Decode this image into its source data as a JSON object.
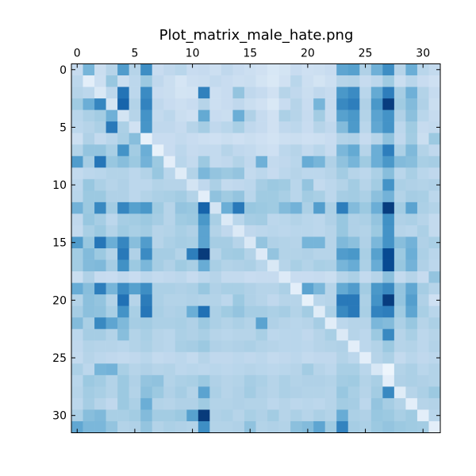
{
  "chart_data": {
    "type": "heatmap",
    "title": "Plot_matrix_male_hate.png",
    "xlabel": "",
    "ylabel": "",
    "rows": 32,
    "cols": 32,
    "x_ticks": [
      0,
      5,
      10,
      15,
      20,
      25,
      30
    ],
    "y_ticks": [
      0,
      5,
      10,
      15,
      20,
      25,
      30
    ],
    "x_axis_position": "top",
    "y_axis_direction": "down",
    "grid": false,
    "colormap": "Blues",
    "vlim": [
      0,
      1
    ],
    "colormap_stops": [
      "#f7fbff",
      "#deebf7",
      "#c6dbef",
      "#9ecae1",
      "#6baed6",
      "#4292c6",
      "#2171b5",
      "#08519c",
      "#08306b"
    ],
    "values": [
      [
        0.25,
        0.47,
        0.23,
        0.3,
        0.58,
        0.3,
        0.64,
        0.24,
        0.27,
        0.29,
        0.24,
        0.25,
        0.22,
        0.27,
        0.24,
        0.22,
        0.2,
        0.16,
        0.18,
        0.24,
        0.21,
        0.22,
        0.24,
        0.54,
        0.56,
        0.32,
        0.49,
        0.64,
        0.3,
        0.5,
        0.29,
        0.26
      ],
      [
        0.28,
        0.1,
        0.22,
        0.39,
        0.23,
        0.28,
        0.38,
        0.27,
        0.23,
        0.17,
        0.22,
        0.23,
        0.26,
        0.24,
        0.22,
        0.23,
        0.18,
        0.15,
        0.2,
        0.29,
        0.22,
        0.18,
        0.22,
        0.3,
        0.31,
        0.25,
        0.28,
        0.37,
        0.23,
        0.29,
        0.24,
        0.21
      ],
      [
        0.3,
        0.28,
        0.15,
        0.28,
        0.74,
        0.28,
        0.65,
        0.24,
        0.23,
        0.18,
        0.19,
        0.69,
        0.22,
        0.24,
        0.4,
        0.27,
        0.25,
        0.2,
        0.3,
        0.27,
        0.23,
        0.27,
        0.25,
        0.6,
        0.65,
        0.29,
        0.52,
        0.7,
        0.35,
        0.49,
        0.31,
        0.25
      ],
      [
        0.37,
        0.5,
        0.67,
        0.18,
        0.8,
        0.31,
        0.68,
        0.27,
        0.24,
        0.22,
        0.24,
        0.3,
        0.22,
        0.24,
        0.27,
        0.23,
        0.2,
        0.15,
        0.24,
        0.3,
        0.24,
        0.47,
        0.25,
        0.66,
        0.7,
        0.32,
        0.6,
        0.95,
        0.37,
        0.44,
        0.32,
        0.23
      ],
      [
        0.29,
        0.33,
        0.36,
        0.49,
        0.18,
        0.3,
        0.62,
        0.26,
        0.28,
        0.23,
        0.21,
        0.52,
        0.24,
        0.23,
        0.5,
        0.32,
        0.25,
        0.2,
        0.33,
        0.3,
        0.25,
        0.36,
        0.25,
        0.56,
        0.6,
        0.31,
        0.55,
        0.62,
        0.32,
        0.42,
        0.29,
        0.25
      ],
      [
        0.28,
        0.3,
        0.33,
        0.72,
        0.33,
        0.2,
        0.61,
        0.27,
        0.27,
        0.25,
        0.3,
        0.35,
        0.27,
        0.29,
        0.34,
        0.27,
        0.25,
        0.2,
        0.27,
        0.28,
        0.24,
        0.3,
        0.27,
        0.44,
        0.59,
        0.29,
        0.53,
        0.62,
        0.28,
        0.37,
        0.25,
        0.26
      ],
      [
        0.22,
        0.32,
        0.26,
        0.29,
        0.34,
        0.43,
        0.08,
        0.24,
        0.24,
        0.26,
        0.24,
        0.22,
        0.21,
        0.23,
        0.21,
        0.23,
        0.21,
        0.19,
        0.22,
        0.23,
        0.21,
        0.22,
        0.24,
        0.31,
        0.32,
        0.25,
        0.3,
        0.41,
        0.27,
        0.36,
        0.23,
        0.38
      ],
      [
        0.31,
        0.4,
        0.4,
        0.34,
        0.62,
        0.36,
        0.5,
        0.08,
        0.24,
        0.28,
        0.25,
        0.26,
        0.26,
        0.3,
        0.27,
        0.26,
        0.23,
        0.21,
        0.28,
        0.3,
        0.26,
        0.29,
        0.25,
        0.46,
        0.52,
        0.3,
        0.5,
        0.7,
        0.33,
        0.45,
        0.31,
        0.27
      ],
      [
        0.58,
        0.35,
        0.73,
        0.39,
        0.43,
        0.38,
        0.48,
        0.38,
        0.1,
        0.29,
        0.26,
        0.38,
        0.26,
        0.27,
        0.31,
        0.27,
        0.49,
        0.26,
        0.27,
        0.29,
        0.51,
        0.47,
        0.32,
        0.41,
        0.47,
        0.37,
        0.5,
        0.6,
        0.44,
        0.43,
        0.34,
        0.35
      ],
      [
        0.26,
        0.28,
        0.29,
        0.31,
        0.31,
        0.28,
        0.31,
        0.39,
        0.29,
        0.12,
        0.31,
        0.46,
        0.4,
        0.38,
        0.4,
        0.26,
        0.28,
        0.25,
        0.28,
        0.3,
        0.28,
        0.28,
        0.3,
        0.36,
        0.3,
        0.28,
        0.33,
        0.43,
        0.29,
        0.34,
        0.29,
        0.27
      ],
      [
        0.28,
        0.39,
        0.33,
        0.3,
        0.32,
        0.28,
        0.28,
        0.31,
        0.3,
        0.3,
        0.18,
        0.27,
        0.33,
        0.26,
        0.27,
        0.28,
        0.35,
        0.38,
        0.37,
        0.29,
        0.4,
        0.26,
        0.28,
        0.31,
        0.36,
        0.3,
        0.36,
        0.62,
        0.33,
        0.32,
        0.31,
        0.32
      ],
      [
        0.29,
        0.38,
        0.38,
        0.32,
        0.32,
        0.28,
        0.31,
        0.33,
        0.34,
        0.36,
        0.31,
        0.1,
        0.41,
        0.37,
        0.4,
        0.29,
        0.37,
        0.37,
        0.34,
        0.29,
        0.36,
        0.34,
        0.28,
        0.35,
        0.36,
        0.33,
        0.42,
        0.48,
        0.31,
        0.35,
        0.34,
        0.28
      ],
      [
        0.48,
        0.38,
        0.66,
        0.36,
        0.67,
        0.56,
        0.6,
        0.37,
        0.3,
        0.4,
        0.39,
        0.8,
        0.18,
        0.5,
        0.72,
        0.39,
        0.38,
        0.37,
        0.44,
        0.48,
        0.33,
        0.57,
        0.33,
        0.7,
        0.44,
        0.38,
        0.5,
        0.95,
        0.36,
        0.55,
        0.33,
        0.31
      ],
      [
        0.27,
        0.39,
        0.35,
        0.28,
        0.35,
        0.36,
        0.38,
        0.35,
        0.3,
        0.37,
        0.38,
        0.6,
        0.34,
        0.14,
        0.29,
        0.35,
        0.36,
        0.28,
        0.29,
        0.31,
        0.29,
        0.28,
        0.32,
        0.39,
        0.32,
        0.33,
        0.4,
        0.63,
        0.32,
        0.33,
        0.3,
        0.26
      ],
      [
        0.26,
        0.34,
        0.38,
        0.31,
        0.37,
        0.34,
        0.36,
        0.3,
        0.31,
        0.34,
        0.32,
        0.55,
        0.31,
        0.27,
        0.14,
        0.27,
        0.28,
        0.29,
        0.28,
        0.29,
        0.29,
        0.28,
        0.3,
        0.39,
        0.32,
        0.31,
        0.38,
        0.62,
        0.3,
        0.29,
        0.33,
        0.26
      ],
      [
        0.58,
        0.39,
        0.73,
        0.5,
        0.67,
        0.43,
        0.58,
        0.3,
        0.33,
        0.35,
        0.34,
        0.55,
        0.35,
        0.35,
        0.3,
        0.15,
        0.4,
        0.32,
        0.31,
        0.3,
        0.47,
        0.47,
        0.3,
        0.45,
        0.42,
        0.32,
        0.46,
        0.62,
        0.43,
        0.48,
        0.32,
        0.34
      ],
      [
        0.36,
        0.44,
        0.38,
        0.31,
        0.72,
        0.32,
        0.65,
        0.35,
        0.35,
        0.31,
        0.7,
        0.96,
        0.3,
        0.36,
        0.37,
        0.31,
        0.13,
        0.4,
        0.31,
        0.31,
        0.32,
        0.3,
        0.3,
        0.58,
        0.6,
        0.34,
        0.56,
        0.9,
        0.38,
        0.5,
        0.33,
        0.29
      ],
      [
        0.36,
        0.44,
        0.45,
        0.35,
        0.63,
        0.38,
        0.46,
        0.35,
        0.32,
        0.37,
        0.34,
        0.51,
        0.34,
        0.31,
        0.32,
        0.33,
        0.29,
        0.15,
        0.3,
        0.34,
        0.31,
        0.34,
        0.33,
        0.47,
        0.51,
        0.33,
        0.51,
        0.9,
        0.39,
        0.48,
        0.32,
        0.28
      ],
      [
        0.23,
        0.32,
        0.25,
        0.24,
        0.27,
        0.24,
        0.28,
        0.26,
        0.27,
        0.28,
        0.25,
        0.28,
        0.3,
        0.26,
        0.26,
        0.24,
        0.25,
        0.25,
        0.13,
        0.24,
        0.24,
        0.25,
        0.23,
        0.3,
        0.33,
        0.26,
        0.3,
        0.42,
        0.26,
        0.3,
        0.25,
        0.4
      ],
      [
        0.51,
        0.43,
        0.7,
        0.47,
        0.65,
        0.56,
        0.64,
        0.33,
        0.33,
        0.32,
        0.33,
        0.39,
        0.32,
        0.34,
        0.34,
        0.32,
        0.3,
        0.3,
        0.33,
        0.1,
        0.55,
        0.46,
        0.3,
        0.52,
        0.58,
        0.36,
        0.6,
        0.66,
        0.4,
        0.53,
        0.35,
        0.3
      ],
      [
        0.31,
        0.42,
        0.4,
        0.31,
        0.75,
        0.3,
        0.71,
        0.33,
        0.31,
        0.31,
        0.32,
        0.31,
        0.31,
        0.28,
        0.38,
        0.32,
        0.3,
        0.27,
        0.3,
        0.3,
        0.08,
        0.29,
        0.3,
        0.72,
        0.72,
        0.33,
        0.62,
        0.95,
        0.4,
        0.57,
        0.32,
        0.21
      ],
      [
        0.35,
        0.42,
        0.41,
        0.34,
        0.62,
        0.34,
        0.73,
        0.34,
        0.32,
        0.33,
        0.5,
        0.75,
        0.33,
        0.37,
        0.4,
        0.35,
        0.35,
        0.33,
        0.35,
        0.31,
        0.36,
        0.12,
        0.33,
        0.66,
        0.72,
        0.34,
        0.68,
        0.7,
        0.37,
        0.54,
        0.34,
        0.29
      ],
      [
        0.44,
        0.34,
        0.66,
        0.54,
        0.45,
        0.35,
        0.36,
        0.33,
        0.33,
        0.34,
        0.32,
        0.38,
        0.33,
        0.31,
        0.33,
        0.31,
        0.55,
        0.32,
        0.3,
        0.29,
        0.3,
        0.35,
        0.11,
        0.28,
        0.3,
        0.3,
        0.46,
        0.44,
        0.33,
        0.39,
        0.3,
        0.33
      ],
      [
        0.28,
        0.35,
        0.35,
        0.31,
        0.43,
        0.31,
        0.34,
        0.3,
        0.29,
        0.33,
        0.32,
        0.34,
        0.3,
        0.29,
        0.3,
        0.3,
        0.34,
        0.28,
        0.29,
        0.29,
        0.27,
        0.3,
        0.34,
        0.14,
        0.3,
        0.28,
        0.38,
        0.66,
        0.3,
        0.34,
        0.28,
        0.3
      ],
      [
        0.27,
        0.31,
        0.3,
        0.3,
        0.29,
        0.31,
        0.33,
        0.3,
        0.29,
        0.34,
        0.35,
        0.38,
        0.32,
        0.31,
        0.32,
        0.33,
        0.31,
        0.3,
        0.29,
        0.29,
        0.28,
        0.3,
        0.31,
        0.32,
        0.1,
        0.28,
        0.31,
        0.38,
        0.3,
        0.31,
        0.28,
        0.31
      ],
      [
        0.26,
        0.3,
        0.28,
        0.27,
        0.26,
        0.27,
        0.29,
        0.26,
        0.27,
        0.28,
        0.26,
        0.3,
        0.27,
        0.27,
        0.28,
        0.27,
        0.28,
        0.26,
        0.27,
        0.28,
        0.26,
        0.27,
        0.27,
        0.31,
        0.28,
        0.1,
        0.3,
        0.33,
        0.26,
        0.29,
        0.27,
        0.28
      ],
      [
        0.33,
        0.28,
        0.47,
        0.48,
        0.34,
        0.3,
        0.32,
        0.3,
        0.31,
        0.28,
        0.29,
        0.28,
        0.29,
        0.28,
        0.29,
        0.3,
        0.29,
        0.28,
        0.29,
        0.3,
        0.36,
        0.3,
        0.28,
        0.34,
        0.34,
        0.29,
        0.16,
        0.05,
        0.31,
        0.33,
        0.29,
        0.31
      ],
      [
        0.29,
        0.38,
        0.36,
        0.31,
        0.38,
        0.32,
        0.4,
        0.41,
        0.31,
        0.33,
        0.34,
        0.38,
        0.32,
        0.3,
        0.31,
        0.35,
        0.33,
        0.3,
        0.33,
        0.31,
        0.32,
        0.32,
        0.31,
        0.36,
        0.37,
        0.31,
        0.34,
        0.1,
        0.32,
        0.33,
        0.32,
        0.31
      ],
      [
        0.3,
        0.36,
        0.34,
        0.31,
        0.38,
        0.31,
        0.42,
        0.38,
        0.32,
        0.35,
        0.31,
        0.55,
        0.33,
        0.3,
        0.32,
        0.36,
        0.32,
        0.3,
        0.33,
        0.32,
        0.31,
        0.31,
        0.3,
        0.39,
        0.34,
        0.3,
        0.36,
        0.66,
        0.12,
        0.3,
        0.33,
        0.38
      ],
      [
        0.28,
        0.35,
        0.3,
        0.27,
        0.38,
        0.33,
        0.5,
        0.31,
        0.3,
        0.32,
        0.32,
        0.37,
        0.31,
        0.31,
        0.32,
        0.31,
        0.31,
        0.28,
        0.3,
        0.28,
        0.29,
        0.28,
        0.3,
        0.36,
        0.35,
        0.28,
        0.4,
        0.35,
        0.31,
        0.1,
        0.3,
        0.31
      ],
      [
        0.33,
        0.43,
        0.45,
        0.34,
        0.34,
        0.36,
        0.44,
        0.36,
        0.36,
        0.38,
        0.56,
        0.96,
        0.32,
        0.33,
        0.3,
        0.34,
        0.32,
        0.36,
        0.3,
        0.33,
        0.3,
        0.33,
        0.31,
        0.51,
        0.33,
        0.32,
        0.39,
        0.38,
        0.34,
        0.37,
        0.1,
        0.29
      ],
      [
        0.53,
        0.46,
        0.46,
        0.4,
        0.31,
        0.32,
        0.4,
        0.31,
        0.33,
        0.32,
        0.31,
        0.64,
        0.31,
        0.31,
        0.32,
        0.41,
        0.31,
        0.32,
        0.31,
        0.42,
        0.44,
        0.54,
        0.37,
        0.68,
        0.35,
        0.33,
        0.38,
        0.4,
        0.38,
        0.37,
        0.36,
        0.1
      ]
    ]
  }
}
